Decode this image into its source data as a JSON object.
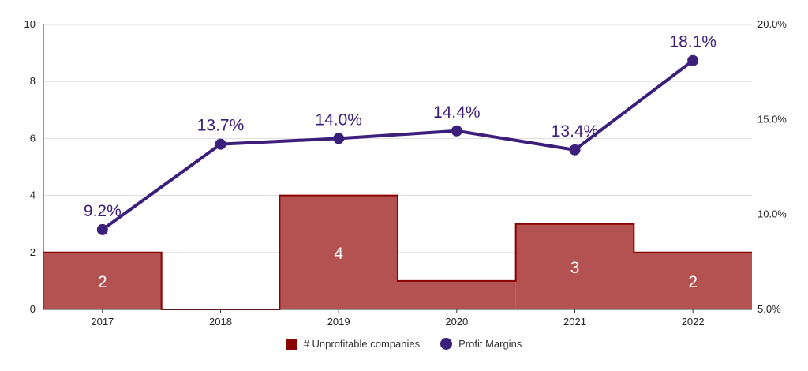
{
  "chart_data": {
    "type": "bar",
    "x": [
      "2017",
      "2018",
      "2019",
      "2020",
      "2021",
      "2022"
    ],
    "series": [
      {
        "name": "# Unprofitable companies",
        "type": "step-area",
        "axis": "left",
        "values": [
          2,
          0,
          4,
          1,
          3,
          2
        ],
        "data_labels": [
          "2",
          "",
          "4",
          "",
          "3",
          "2"
        ],
        "color": "#b04848",
        "edge_color": "#8b0000"
      },
      {
        "name": "Profit Margins",
        "type": "line",
        "axis": "right",
        "values": [
          9.2,
          13.7,
          14.0,
          14.4,
          13.4,
          18.1
        ],
        "data_labels": [
          "9.2%",
          "13.7%",
          "14.0%",
          "14.4%",
          "13.4%",
          "18.1%"
        ],
        "color": "#3b1f7a"
      }
    ],
    "y_left": {
      "ylim": [
        0,
        10
      ],
      "ticks": [
        "0",
        "2",
        "4",
        "6",
        "8",
        "10"
      ]
    },
    "y_right": {
      "ylim": [
        5,
        20
      ],
      "ticks": [
        "5.0%",
        "10.0%",
        "15.0%",
        "20.0%"
      ],
      "tick_values": [
        5,
        10,
        15,
        20
      ]
    },
    "grid": true,
    "legend_position": "bottom"
  }
}
